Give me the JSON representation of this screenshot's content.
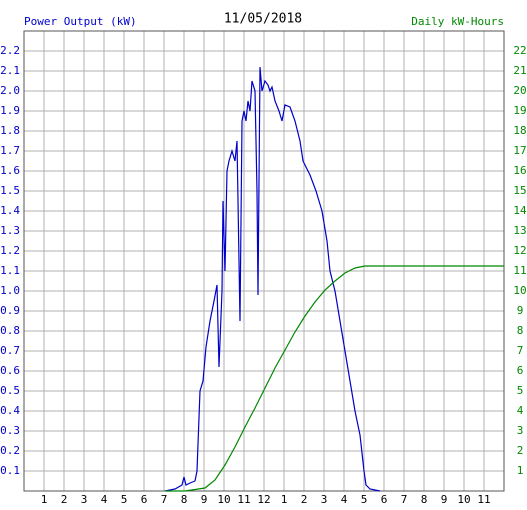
{
  "chart_data": {
    "type": "line",
    "title": "11/05/2018",
    "y_label": "Power Output (kW)",
    "y2_label": "Daily kW-Hours",
    "xlim": [
      0,
      24
    ],
    "xticks": [
      1,
      2,
      3,
      4,
      5,
      6,
      7,
      8,
      9,
      10,
      11,
      12,
      {
        "value": 13,
        "label": "1"
      },
      {
        "value": 14,
        "label": "2"
      },
      {
        "value": 15,
        "label": "3"
      },
      {
        "value": 16,
        "label": "4"
      },
      {
        "value": 17,
        "label": "5"
      },
      {
        "value": 18,
        "label": "6"
      },
      {
        "value": 19,
        "label": "7"
      },
      {
        "value": 20,
        "label": "8"
      },
      {
        "value": 21,
        "label": "9"
      },
      {
        "value": 22,
        "label": "10"
      },
      {
        "value": 23,
        "label": "11"
      }
    ],
    "ylim": [
      0,
      2.3
    ],
    "yticks": [
      0.1,
      0.2,
      0.3,
      0.4,
      0.5,
      0.6,
      0.7,
      0.8,
      0.9,
      {
        "value": 1,
        "label": "1.0"
      },
      1.1,
      1.2,
      1.3,
      1.4,
      1.5,
      1.6,
      1.7,
      1.8,
      1.9,
      {
        "value": 2,
        "label": "2.0"
      },
      2.1,
      2.2
    ],
    "y2lim": [
      0,
      23
    ],
    "y2ticks": [
      1,
      2,
      3,
      4,
      5,
      6,
      7,
      8,
      9,
      10,
      11,
      12,
      13,
      14,
      15,
      16,
      17,
      18,
      19,
      20,
      21,
      22
    ],
    "grid": true,
    "series": [
      {
        "color": "#0000cc",
        "axis": "y",
        "x": [
          7.05,
          7.55,
          7.9,
          8.0,
          8.1,
          8.3,
          8.55,
          8.65,
          8.8,
          8.95,
          9.1,
          9.3,
          9.5,
          9.65,
          9.75,
          9.9,
          9.95,
          10.05,
          10.15,
          10.25,
          10.4,
          10.55,
          10.65,
          10.8,
          10.9,
          11.0,
          11.1,
          11.2,
          11.3,
          11.4,
          11.55,
          11.65,
          11.7,
          11.8,
          11.9,
          12.05,
          12.2,
          12.3,
          12.4,
          12.55,
          12.75,
          12.9,
          13.05,
          13.3,
          13.55,
          13.8,
          13.95,
          14.3,
          14.6,
          14.9,
          15.15,
          15.3,
          15.55,
          15.8,
          16.05,
          16.3,
          16.55,
          16.8,
          17.0,
          17.1,
          17.3,
          17.8
        ],
        "values": [
          0,
          0.01,
          0.03,
          0.07,
          0.03,
          0.04,
          0.05,
          0.1,
          0.5,
          0.55,
          0.72,
          0.85,
          0.95,
          1.03,
          0.62,
          1.0,
          1.45,
          1.1,
          1.6,
          1.65,
          1.7,
          1.65,
          1.75,
          0.85,
          1.85,
          1.9,
          1.85,
          1.95,
          1.9,
          2.05,
          2.0,
          1.5,
          0.98,
          2.12,
          2.0,
          2.05,
          2.03,
          2.0,
          2.02,
          1.95,
          1.9,
          1.85,
          1.93,
          1.92,
          1.85,
          1.75,
          1.65,
          1.58,
          1.5,
          1.4,
          1.25,
          1.1,
          1.0,
          0.85,
          0.7,
          0.55,
          0.4,
          0.28,
          0.1,
          0.03,
          0.01,
          0
        ]
      },
      {
        "color": "#008800",
        "axis": "y2",
        "x": [
          7.05,
          8.05,
          9.05,
          9.55,
          10.05,
          10.55,
          11.05,
          11.55,
          12.05,
          12.55,
          13.05,
          13.55,
          14.05,
          14.55,
          15.05,
          15.55,
          16.05,
          16.55,
          17.05,
          24
        ],
        "values": [
          0,
          0,
          0.15,
          0.55,
          1.3,
          2.2,
          3.2,
          4.15,
          5.15,
          6.15,
          7.05,
          7.95,
          8.75,
          9.45,
          10.05,
          10.5,
          10.9,
          11.15,
          11.25,
          11.25
        ]
      }
    ]
  }
}
